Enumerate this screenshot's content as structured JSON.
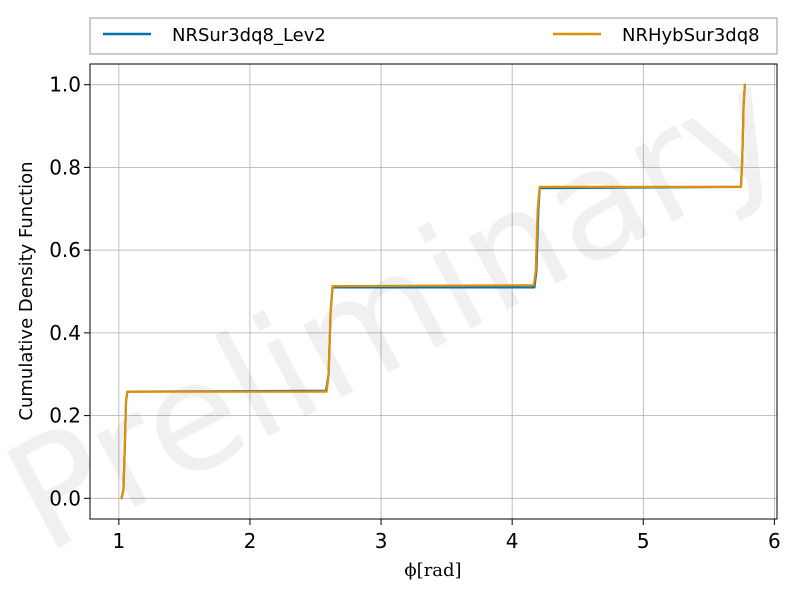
{
  "chart_data": {
    "type": "line",
    "title": "",
    "xlabel": "ϕ[rad]",
    "ylabel": "Cumulative Density Function",
    "xlim": [
      0.78,
      6.02
    ],
    "ylim": [
      -0.05,
      1.05
    ],
    "xticks": [
      1,
      2,
      3,
      4,
      5,
      6
    ],
    "yticks": [
      0.0,
      0.2,
      0.4,
      0.6,
      0.8,
      1.0
    ],
    "ytick_labels": [
      "0.0",
      "0.2",
      "0.4",
      "0.6",
      "0.8",
      "1.0"
    ],
    "grid": true,
    "legend_position": "top",
    "legend_columns": 2,
    "watermark": "Preliminary",
    "series": [
      {
        "name": "NRSur3dq8_Lev2",
        "color": "#0072b2",
        "points": [
          [
            1.02,
            0.0
          ],
          [
            1.035,
            0.02
          ],
          [
            1.045,
            0.12
          ],
          [
            1.055,
            0.235
          ],
          [
            1.065,
            0.258
          ],
          [
            2.58,
            0.26
          ],
          [
            2.6,
            0.3
          ],
          [
            2.615,
            0.45
          ],
          [
            2.63,
            0.51
          ],
          [
            4.17,
            0.51
          ],
          [
            4.185,
            0.55
          ],
          [
            4.2,
            0.7
          ],
          [
            4.21,
            0.75
          ],
          [
            5.745,
            0.753
          ],
          [
            5.755,
            0.82
          ],
          [
            5.765,
            0.95
          ],
          [
            5.775,
            1.0
          ]
        ]
      },
      {
        "name": "NRHybSur3dq8",
        "color": "#de8f05",
        "points": [
          [
            1.02,
            0.0
          ],
          [
            1.035,
            0.02
          ],
          [
            1.045,
            0.12
          ],
          [
            1.055,
            0.235
          ],
          [
            1.065,
            0.258
          ],
          [
            2.585,
            0.258
          ],
          [
            2.6,
            0.3
          ],
          [
            2.615,
            0.45
          ],
          [
            2.63,
            0.513
          ],
          [
            4.165,
            0.515
          ],
          [
            4.18,
            0.55
          ],
          [
            4.195,
            0.7
          ],
          [
            4.21,
            0.753
          ],
          [
            5.745,
            0.753
          ],
          [
            5.755,
            0.82
          ],
          [
            5.765,
            0.95
          ],
          [
            5.775,
            1.0
          ]
        ]
      }
    ]
  }
}
